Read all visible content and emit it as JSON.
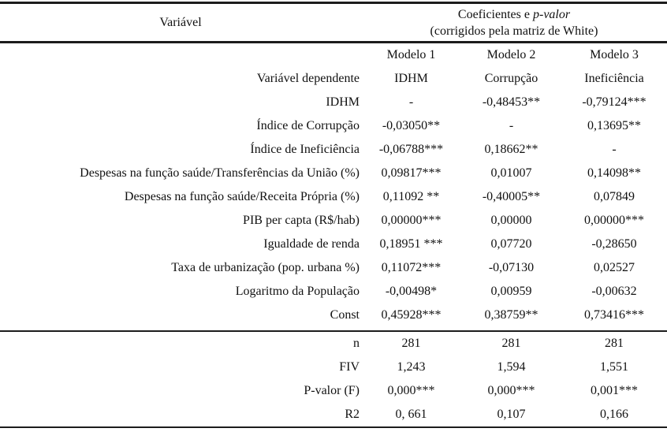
{
  "table": {
    "header": {
      "variable_col": "Variável",
      "coef_normal": "Coeficientes e ",
      "coef_italic": "p-valor",
      "coef_line2": "(corrigidos pela matriz de White)"
    },
    "model_headers": [
      "Modelo 1",
      "Modelo 2",
      "Modelo 3"
    ],
    "rows": [
      {
        "label": "Variável dependente",
        "m1": "IDHM",
        "m2": "Corrupção",
        "m3": "Ineficiência"
      },
      {
        "label": "IDHM",
        "m1": "-",
        "m2": "-0,48453**",
        "m3": "-0,79124***"
      },
      {
        "label": "Índice de Corrupção",
        "m1": "-0,03050**",
        "m2": "-",
        "m3": "0,13695**"
      },
      {
        "label": "Índice de Ineficiência",
        "m1": "-0,06788***",
        "m2": "0,18662**",
        "m3": "-"
      },
      {
        "label": "Despesas na função saúde/Transferências da União (%)",
        "m1": "0,09817***",
        "m2": "0,01007",
        "m3": "0,14098**"
      },
      {
        "label": "Despesas na função saúde/Receita Própria (%)",
        "m1": "0,11092 **",
        "m2": "-0,40005**",
        "m3": "0,07849"
      },
      {
        "label": "PIB per capta (R$/hab)",
        "m1": "0,00000***",
        "m2": "0,00000",
        "m3": "0,00000***"
      },
      {
        "label": "Igualdade de renda",
        "m1": "0,18951 ***",
        "m2": "0,07720",
        "m3": "-0,28650"
      },
      {
        "label": "Taxa de urbanização (pop. urbana %)",
        "m1": "0,11072***",
        "m2": "-0,07130",
        "m3": "0,02527"
      },
      {
        "label": "Logaritmo da População",
        "m1": "-0,00498*",
        "m2": "0,00959",
        "m3": "-0,00632"
      },
      {
        "label": "Const",
        "m1": "0,45928***",
        "m2": "0,38759**",
        "m3": "0,73416***"
      }
    ],
    "stats_rows": [
      {
        "label": "n",
        "m1": "281",
        "m2": "281",
        "m3": "281"
      },
      {
        "label": "FIV",
        "m1": "1,243",
        "m2": "1,594",
        "m3": "1,551"
      },
      {
        "label": "P-valor (F)",
        "m1": "0,000***",
        "m2": "0,000***",
        "m3": "0,001***"
      },
      {
        "label": "R2",
        "m1": "0, 661",
        "m2": "0,107",
        "m3": "0,166"
      }
    ]
  }
}
